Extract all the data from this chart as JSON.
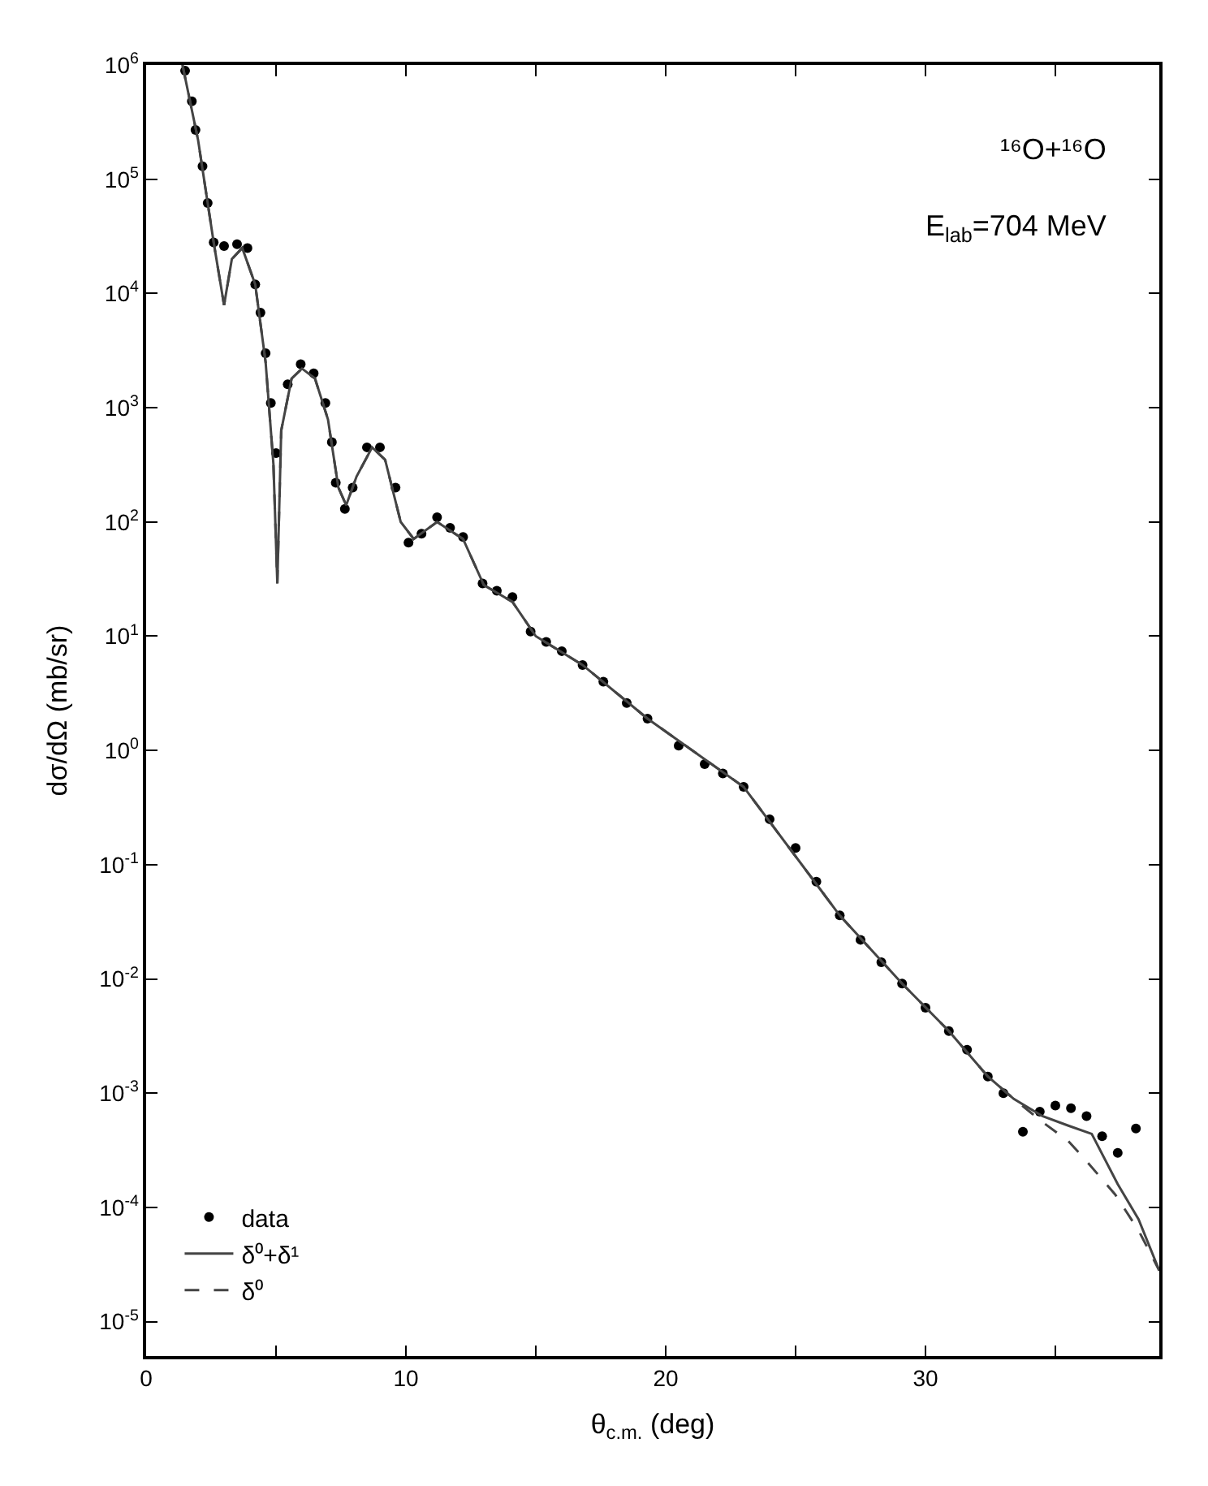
{
  "chart_data": {
    "type": "line",
    "xlabel": "θ$_{c.m.}$ (deg)",
    "ylabel": "dσ/dΩ (mb/sr)",
    "annotations": [
      "¹⁶O+¹⁶O",
      "E$_{lab}$=704 MeV"
    ],
    "log": "y",
    "legend": "bottom left",
    "xlim": [
      0,
      39
    ],
    "xticks": [
      0,
      {
        "value": 5,
        "label": null
      },
      10,
      {
        "value": 15,
        "label": null
      },
      20,
      {
        "value": 25,
        "label": null
      },
      30,
      {
        "value": 35,
        "label": null
      }
    ],
    "ylim": [
      5e-06,
      1000000.0
    ],
    "yticks": [
      {
        "value": 1000000.0,
        "label": "10$^{6}$"
      },
      {
        "value": 100000.0,
        "label": "10$^{5}$"
      },
      {
        "value": 10000.0,
        "label": "10$^{4}$"
      },
      {
        "value": 1000.0,
        "label": "10$^{3}$"
      },
      {
        "value": 100.0,
        "label": "10$^{2}$"
      },
      {
        "value": 10.0,
        "label": "10$^{1}$"
      },
      {
        "value": 1,
        "label": "10$^{0}$"
      },
      {
        "value": 0.1,
        "label": "10$^{-1}$"
      },
      {
        "value": 0.01,
        "label": "10$^{-2}$"
      },
      {
        "value": 0.001,
        "label": "10$^{-3}$"
      },
      {
        "value": 0.0001,
        "label": "10$^{-4}$"
      },
      {
        "value": 1e-05,
        "label": "10$^{-5}$"
      }
    ],
    "series": [
      {
        "name": "data",
        "type": "scatter",
        "marker": "circle",
        "color": "#000000",
        "x": [
          1.5,
          1.76,
          1.9,
          2.17,
          2.37,
          2.6,
          3.0,
          3.5,
          3.9,
          4.2,
          4.4,
          4.6,
          4.8,
          5.0,
          5.45,
          5.95,
          6.45,
          6.9,
          7.15,
          7.3,
          7.65,
          7.95,
          8.5,
          9.0,
          9.6,
          10.1,
          10.6,
          11.2,
          11.7,
          12.2,
          12.95,
          13.5,
          14.1,
          14.8,
          15.4,
          16.0,
          16.8,
          17.6,
          18.5,
          19.3,
          20.5,
          21.5,
          22.2,
          23.0,
          24.0,
          25.0,
          25.8,
          26.7,
          27.5,
          28.3,
          29.1,
          30.0,
          30.9,
          31.6,
          32.4,
          33.0,
          33.75,
          34.4,
          35.0,
          35.6,
          36.2,
          36.8,
          37.4,
          38.1
        ],
        "values": [
          890000.0,
          480000.0,
          270000.0,
          130000.0,
          62000.0,
          28000.0,
          26000.0,
          27000.0,
          25000.0,
          12000.0,
          6800.0,
          3000.0,
          1100.0,
          400.0,
          1600.0,
          2400.0,
          2000.0,
          1100.0,
          500.0,
          220.0,
          130.0,
          200.0,
          450.0,
          450.0,
          200.0,
          66,
          79,
          110,
          89,
          74,
          29,
          25,
          22,
          11,
          8.9,
          7.4,
          5.6,
          4.0,
          2.6,
          1.9,
          1.1,
          0.76,
          0.63,
          0.48,
          0.25,
          0.14,
          0.071,
          0.036,
          0.022,
          0.014,
          0.0091,
          0.0056,
          0.0035,
          0.0024,
          0.0014,
          0.001,
          0.00046,
          0.00069,
          0.00078,
          0.00074,
          0.00063,
          0.00042,
          0.0003,
          0.00049
        ]
      },
      {
        "name": "δ⁰+δ¹",
        "line_style": "solid",
        "color": "#444444",
        "x": [
          1.4,
          2.0,
          2.6,
          3.0,
          3.3,
          3.7,
          4.2,
          4.6,
          4.9,
          5.05,
          5.2,
          5.6,
          6.0,
          6.5,
          7.0,
          7.4,
          7.7,
          8.1,
          8.7,
          9.2,
          9.8,
          10.3,
          11.2,
          12.2,
          13.0,
          14.1,
          15.0,
          16.8,
          19.3,
          23.0,
          26.7,
          29.1,
          30.9,
          32.4,
          33.4,
          34.5,
          35.5,
          36.4,
          37.4,
          38.2,
          39.0
        ],
        "values": [
          1000000.0,
          220000.0,
          28000.0,
          7900.0,
          20000.0,
          25000.0,
          12000.0,
          2500.0,
          320.0,
          29,
          630.0,
          1800.0,
          2200.0,
          1800.0,
          790.0,
          200.0,
          140.0,
          250.0,
          450.0,
          350.0,
          100.0,
          71,
          100.0,
          71,
          28,
          20,
          10,
          5.6,
          1.9,
          0.48,
          0.036,
          0.0091,
          0.0035,
          0.0014,
          0.00089,
          0.00063,
          0.00052,
          0.00044,
          0.00016,
          7.9e-05,
          2.8e-05
        ]
      },
      {
        "name": "δ⁰",
        "line_style": "dashed",
        "color": "#444444",
        "x": [
          1.4,
          2.0,
          2.6,
          3.0,
          3.3,
          3.7,
          4.2,
          4.6,
          4.9,
          5.05,
          5.2,
          5.6,
          6.0,
          6.5,
          7.0,
          7.4,
          7.7,
          8.1,
          8.7,
          9.2,
          9.8,
          10.3,
          11.2,
          12.2,
          13.0,
          14.1,
          15.0,
          16.8,
          19.3,
          23.0,
          26.7,
          29.1,
          30.9,
          32.4,
          33.4,
          34.5,
          35.5,
          36.1,
          37.3,
          38.2,
          39.0
        ],
        "values": [
          1000000.0,
          220000.0,
          28000.0,
          7900.0,
          20000.0,
          25000.0,
          12000.0,
          2500.0,
          320.0,
          29,
          630.0,
          1800.0,
          2200.0,
          1800.0,
          790.0,
          200.0,
          140.0,
          250.0,
          450.0,
          350.0,
          100.0,
          71,
          100.0,
          71,
          28,
          20,
          10,
          5.6,
          1.9,
          0.48,
          0.036,
          0.0091,
          0.0035,
          0.0014,
          0.00089,
          0.00056,
          0.00038,
          0.00027,
          0.00013,
          6.3e-05,
          2.8e-05
        ]
      }
    ]
  }
}
